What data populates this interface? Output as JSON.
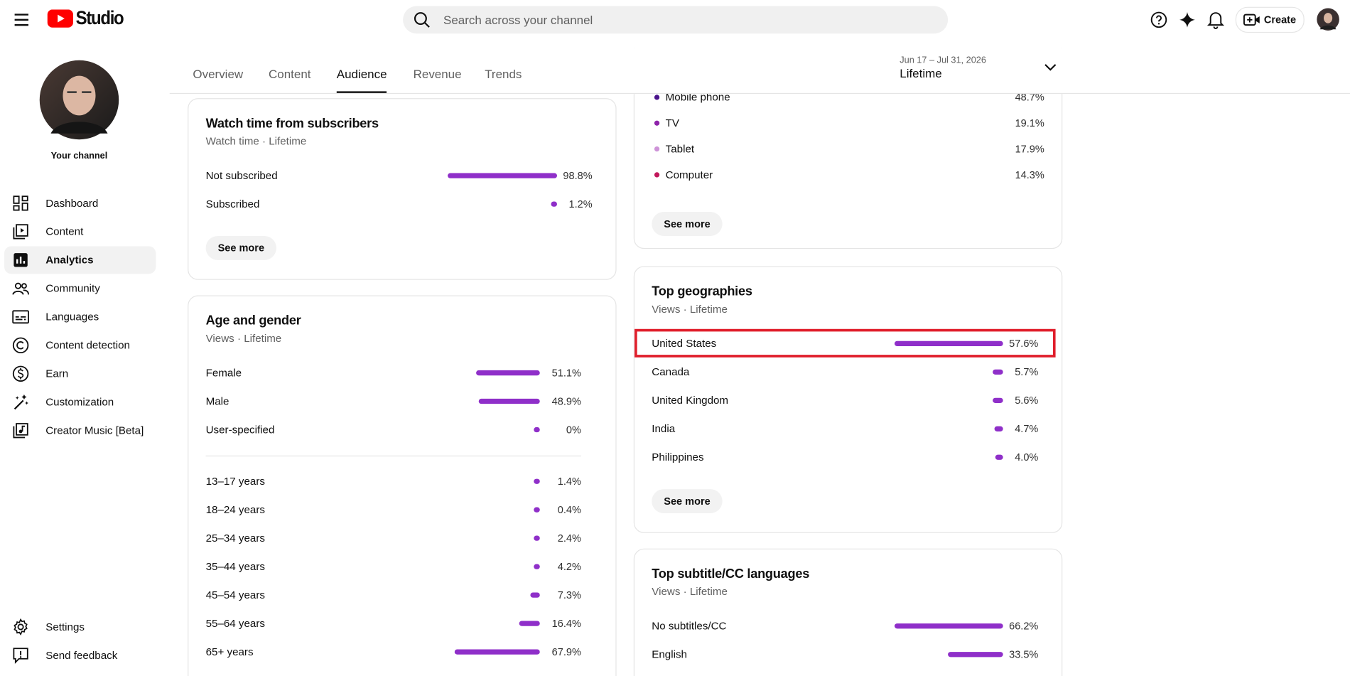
{
  "header": {
    "logo": "Studio",
    "search_placeholder": "Search across your channel",
    "create": "Create"
  },
  "sidebar": {
    "channel": "Your channel",
    "nav": [
      "Dashboard",
      "Content",
      "Analytics",
      "Community",
      "Languages",
      "Content detection",
      "Earn",
      "Customization",
      "Creator Music [Beta]"
    ],
    "active": 2,
    "footer": [
      "Settings",
      "Send feedback"
    ]
  },
  "tabs": {
    "items": [
      "Overview",
      "Content",
      "Audience",
      "Revenue",
      "Trends"
    ],
    "active": 2
  },
  "date_range": {
    "range": "Jun 17 – Jul 31, 2026",
    "period": "Lifetime"
  },
  "cards": {
    "subscribers": {
      "title": "Watch time from subscribers",
      "subtitle": "Watch time · Lifetime",
      "rows": [
        {
          "label": "Not subscribed",
          "value": 98.8,
          "value_label": "98.8%"
        },
        {
          "label": "Subscribed",
          "value": 1.2,
          "value_label": "1.2%"
        }
      ],
      "button": "See more"
    },
    "age_gender": {
      "title": "Age and gender",
      "subtitle": "Views · Lifetime",
      "groups": [
        [
          {
            "label": "Female",
            "value": 51.1,
            "value_label": "51.1%"
          },
          {
            "label": "Male",
            "value": 48.9,
            "value_label": "48.9%"
          },
          {
            "label": "User-specified",
            "value": 0,
            "value_label": "0%"
          }
        ],
        [
          {
            "label": "13–17 years",
            "value": 1.4,
            "value_label": "1.4%"
          },
          {
            "label": "18–24 years",
            "value": 0.4,
            "value_label": "0.4%"
          },
          {
            "label": "25–34 years",
            "value": 2.4,
            "value_label": "2.4%"
          },
          {
            "label": "35–44 years",
            "value": 4.2,
            "value_label": "4.2%"
          },
          {
            "label": "45–54 years",
            "value": 7.3,
            "value_label": "7.3%"
          },
          {
            "label": "55–64 years",
            "value": 16.4,
            "value_label": "16.4%"
          },
          {
            "label": "65+ years",
            "value": 67.9,
            "value_label": "67.9%"
          }
        ]
      ]
    },
    "devices": {
      "rows": [
        {
          "label": "Mobile phone",
          "value_label": "48.7%",
          "color": "#4a148c"
        },
        {
          "label": "TV",
          "value_label": "19.1%",
          "color": "#8e24aa"
        },
        {
          "label": "Tablet",
          "value_label": "17.9%",
          "color": "#ce93d8"
        },
        {
          "label": "Computer",
          "value_label": "14.3%",
          "color": "#c2185b"
        }
      ],
      "button": "See more"
    },
    "geographies": {
      "title": "Top geographies",
      "subtitle": "Views · Lifetime",
      "highlighted": 0,
      "rows": [
        {
          "label": "United States",
          "value": 57.6,
          "value_label": "57.6%"
        },
        {
          "label": "Canada",
          "value": 5.7,
          "value_label": "5.7%"
        },
        {
          "label": "United Kingdom",
          "value": 5.6,
          "value_label": "5.6%"
        },
        {
          "label": "India",
          "value": 4.7,
          "value_label": "4.7%"
        },
        {
          "label": "Philippines",
          "value": 4.0,
          "value_label": "4.0%"
        }
      ],
      "button": "See more"
    },
    "subtitles": {
      "title": "Top subtitle/CC languages",
      "subtitle": "Views · Lifetime",
      "rows": [
        {
          "label": "No subtitles/CC",
          "value": 66.2,
          "value_label": "66.2%"
        },
        {
          "label": "English",
          "value": 33.5,
          "value_label": "33.5%"
        }
      ]
    }
  }
}
